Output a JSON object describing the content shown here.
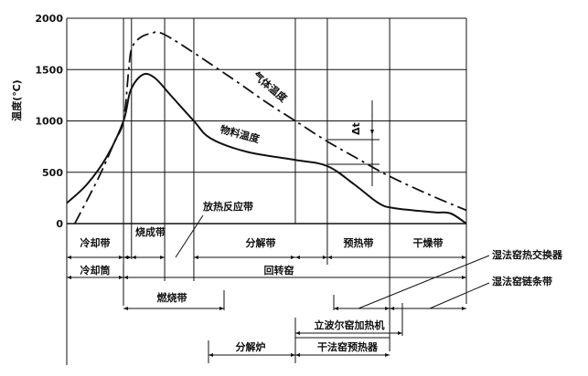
{
  "chart_data": {
    "type": "line",
    "ylabel": "温度(℃)",
    "ylim": [
      0,
      2000
    ],
    "yticks": [
      "0",
      "500",
      "1000",
      "1500",
      "2000"
    ],
    "grid": true,
    "series": [
      {
        "name": "物料温度",
        "style": "solid",
        "points": [
          [
            0,
            200
          ],
          [
            5,
            380
          ],
          [
            10,
            650
          ],
          [
            14.2,
            1000
          ],
          [
            16,
            1300
          ],
          [
            19,
            1450
          ],
          [
            22,
            1420
          ],
          [
            26,
            1250
          ],
          [
            31.8,
            1000
          ],
          [
            36,
            830
          ],
          [
            45,
            700
          ],
          [
            57.2,
            620
          ],
          [
            65.2,
            560
          ],
          [
            72,
            380
          ],
          [
            78,
            200
          ],
          [
            82,
            150
          ],
          [
            92,
            110
          ],
          [
            96,
            100
          ],
          [
            100,
            0
          ]
        ]
      },
      {
        "name": "气体温度",
        "style": "dash-dot",
        "points": [
          [
            2,
            0
          ],
          [
            8,
            450
          ],
          [
            12,
            800
          ],
          [
            14.2,
            1000
          ],
          [
            15.5,
            1500
          ],
          [
            16.2,
            1700
          ],
          [
            18,
            1800
          ],
          [
            21,
            1850
          ],
          [
            25,
            1830
          ],
          [
            40,
            1450
          ],
          [
            50,
            1180
          ],
          [
            57.2,
            1000
          ],
          [
            65.2,
            800
          ],
          [
            72,
            650
          ],
          [
            80.8,
            460
          ],
          [
            92,
            260
          ],
          [
            100,
            130
          ]
        ]
      }
    ],
    "delta_label": "Δt",
    "zone_boundaries": [
      14.2,
      16.2,
      24.5,
      31.8,
      57.2,
      65.2,
      80.8
    ]
  },
  "zones": {
    "cooling": "冷却带",
    "burning": "烧成带",
    "exothermic": "放热反应带",
    "decomposition": "分解带",
    "preheating": "预热带",
    "drying": "干燥带"
  },
  "equipment": {
    "cooler": "冷却筒",
    "rotary_kiln": "回转窑",
    "combustion_zone": "燃烧带",
    "wet_heat_exchanger": "湿法窑热交换器",
    "wet_chain_zone": "湿法窑链条带",
    "lepol_grate": "立波尔窑加热机",
    "calciner": "分解炉",
    "dry_preheater": "干法窑预热器"
  }
}
